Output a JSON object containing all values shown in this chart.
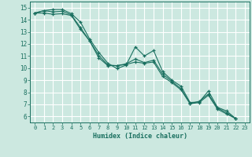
{
  "xlabel": "Humidex (Indice chaleur)",
  "xlim": [
    -0.5,
    23.5
  ],
  "ylim": [
    5.5,
    15.5
  ],
  "yticks": [
    6,
    7,
    8,
    9,
    10,
    11,
    12,
    13,
    14,
    15
  ],
  "xticks": [
    0,
    1,
    2,
    3,
    4,
    5,
    6,
    7,
    8,
    9,
    10,
    11,
    12,
    13,
    14,
    15,
    16,
    17,
    18,
    19,
    20,
    21,
    22,
    23
  ],
  "bg_color": "#cce8e0",
  "line_color": "#1a7060",
  "grid_color": "#ffffff",
  "series": [
    [
      14.55,
      14.75,
      14.85,
      14.85,
      14.5,
      13.8,
      12.4,
      11.3,
      10.4,
      9.95,
      10.25,
      11.75,
      11.0,
      11.45,
      9.7,
      9.0,
      8.5,
      7.15,
      7.2,
      8.1,
      6.75,
      6.45,
      5.82
    ],
    [
      14.55,
      14.75,
      14.65,
      14.7,
      14.4,
      13.35,
      12.25,
      11.05,
      10.25,
      10.2,
      10.35,
      10.75,
      10.45,
      10.65,
      9.5,
      8.9,
      8.3,
      7.05,
      7.25,
      7.85,
      6.7,
      6.3,
      5.82
    ],
    [
      14.55,
      14.55,
      14.45,
      14.5,
      14.35,
      13.2,
      12.25,
      10.85,
      10.2,
      10.2,
      10.3,
      10.5,
      10.4,
      10.5,
      9.3,
      8.8,
      8.2,
      7.05,
      7.15,
      7.75,
      6.6,
      6.2,
      5.82
    ]
  ]
}
